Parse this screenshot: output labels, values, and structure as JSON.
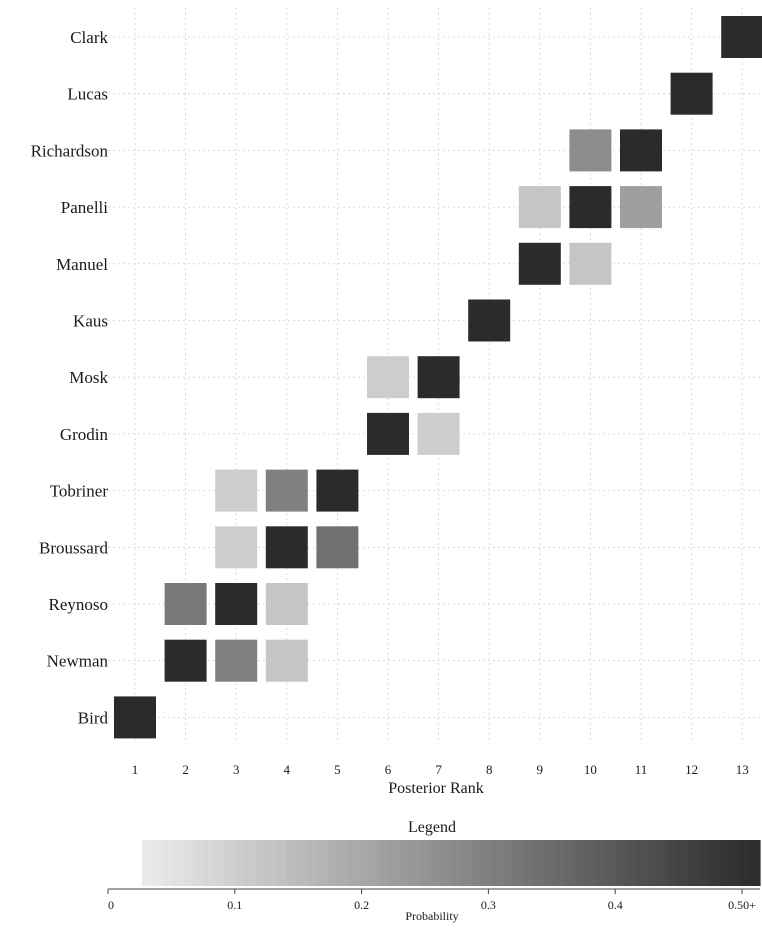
{
  "chart_data": {
    "type": "heatmap",
    "title": "",
    "xlabel": "Posterior Rank",
    "ylabel": "",
    "x_ticks": [
      "1",
      "2",
      "3",
      "4",
      "5",
      "6",
      "7",
      "8",
      "9",
      "10",
      "11",
      "12",
      "13"
    ],
    "rows": [
      "Clark",
      "Lucas",
      "Richardson",
      "Panelli",
      "Manuel",
      "Kaus",
      "Mosk",
      "Grodin",
      "Tobriner",
      "Broussard",
      "Reynoso",
      "Newman",
      "Bird"
    ],
    "cells": [
      {
        "row": "Clark",
        "rank": 13,
        "probability": 0.5
      },
      {
        "row": "Lucas",
        "rank": 12,
        "probability": 0.5
      },
      {
        "row": "Richardson",
        "rank": 10,
        "probability": 0.25
      },
      {
        "row": "Richardson",
        "rank": 11,
        "probability": 0.5
      },
      {
        "row": "Panelli",
        "rank": 9,
        "probability": 0.1
      },
      {
        "row": "Panelli",
        "rank": 10,
        "probability": 0.5
      },
      {
        "row": "Panelli",
        "rank": 11,
        "probability": 0.2
      },
      {
        "row": "Manuel",
        "rank": 9,
        "probability": 0.5
      },
      {
        "row": "Manuel",
        "rank": 10,
        "probability": 0.1
      },
      {
        "row": "Kaus",
        "rank": 8,
        "probability": 0.5
      },
      {
        "row": "Mosk",
        "rank": 6,
        "probability": 0.08
      },
      {
        "row": "Mosk",
        "rank": 7,
        "probability": 0.5
      },
      {
        "row": "Grodin",
        "rank": 6,
        "probability": 0.5
      },
      {
        "row": "Grodin",
        "rank": 7,
        "probability": 0.08
      },
      {
        "row": "Tobriner",
        "rank": 3,
        "probability": 0.08
      },
      {
        "row": "Tobriner",
        "rank": 4,
        "probability": 0.28
      },
      {
        "row": "Tobriner",
        "rank": 5,
        "probability": 0.5
      },
      {
        "row": "Broussard",
        "rank": 3,
        "probability": 0.08
      },
      {
        "row": "Broussard",
        "rank": 4,
        "probability": 0.5
      },
      {
        "row": "Broussard",
        "rank": 5,
        "probability": 0.32
      },
      {
        "row": "Reynoso",
        "rank": 2,
        "probability": 0.3
      },
      {
        "row": "Reynoso",
        "rank": 3,
        "probability": 0.5
      },
      {
        "row": "Reynoso",
        "rank": 4,
        "probability": 0.1
      },
      {
        "row": "Newman",
        "rank": 2,
        "probability": 0.5
      },
      {
        "row": "Newman",
        "rank": 3,
        "probability": 0.28
      },
      {
        "row": "Newman",
        "rank": 4,
        "probability": 0.1
      },
      {
        "row": "Bird",
        "rank": 1,
        "probability": 0.5
      }
    ],
    "legend": {
      "title": "Legend",
      "label": "Probability",
      "ticks": [
        "0",
        "0.1",
        "0.2",
        "0.3",
        "0.4",
        "0.50+"
      ],
      "range": [
        0,
        0.5
      ]
    },
    "grid": true,
    "colors": {
      "low": "#ececec",
      "high": "#2b2b2b"
    }
  }
}
